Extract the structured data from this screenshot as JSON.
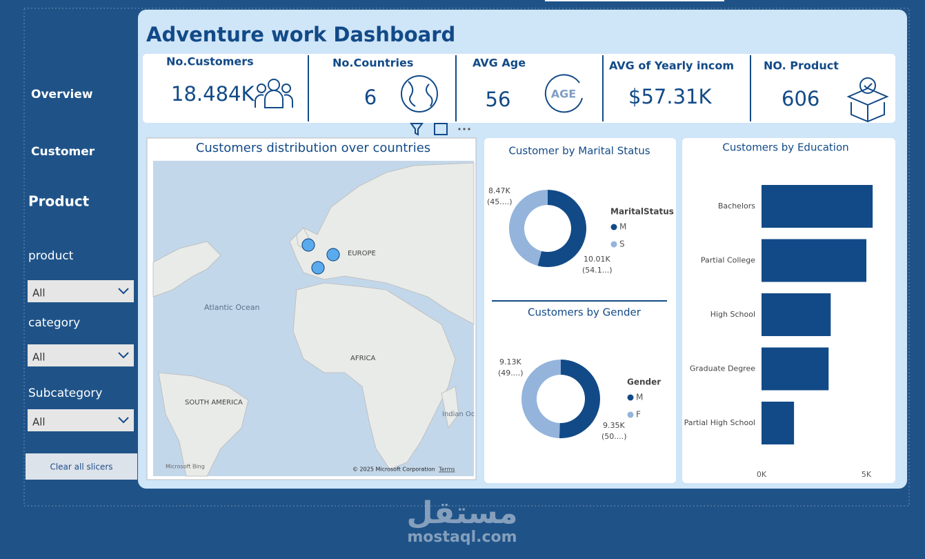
{
  "sidebar": {
    "nav": [
      "Overview",
      "Customer",
      "Product"
    ],
    "slicers": [
      {
        "label": "product",
        "value": "All"
      },
      {
        "label": "category",
        "value": "All"
      },
      {
        "label": "Subcategory",
        "value": "All"
      }
    ],
    "clear_button": "Clear all slicers"
  },
  "header": {
    "title": "Adventure work  Dashboard"
  },
  "kpis": [
    {
      "label": "No.Customers",
      "value": "18.484K"
    },
    {
      "label": "No.Countries",
      "value": "6"
    },
    {
      "label": "AVG Age",
      "value": "56"
    },
    {
      "label": "AVG of Yearly incom",
      "value": "$57.31K"
    },
    {
      "label": "NO. Product",
      "value": "606"
    }
  ],
  "age_icon": "AGE",
  "map": {
    "title": "Customers distribution over countries",
    "places": [
      "EUROPE",
      "Atlantic Ocean",
      "AFRICA",
      "SOUTH AMERICA",
      "Indian Oc"
    ],
    "brand": "Microsoft Bing",
    "credit": "© 2025 Microsoft Corporation",
    "terms": "Terms"
  },
  "marital": {
    "type": "pie",
    "title": "Customer by Marital Status",
    "legend_title": "MaritalStatus",
    "categories": [
      "M",
      "S"
    ],
    "values": [
      10010,
      8470
    ],
    "value_labels": [
      "10.01K",
      "8.47K"
    ],
    "percent_labels": [
      "(54.1...)",
      "(45....)"
    ],
    "colors": [
      "#124a87",
      "#94b4dc"
    ]
  },
  "gender": {
    "type": "pie",
    "title": "Customers by Gender",
    "legend_title": "Gender",
    "categories": [
      "M",
      "F"
    ],
    "values": [
      9350,
      9130
    ],
    "value_labels": [
      "9.35K",
      "9.13K"
    ],
    "percent_labels": [
      "(50....)",
      "(49....)"
    ],
    "colors": [
      "#124a87",
      "#94b4dc"
    ]
  },
  "education": {
    "type": "bar",
    "title": "Customers by Education",
    "categories": [
      "Bachelors",
      "Partial College",
      "High School",
      "Graduate Degree",
      "Partial High School"
    ],
    "values": [
      5300,
      5000,
      3300,
      3200,
      1550
    ],
    "color": "#124a87",
    "xlim": [
      0,
      5600
    ],
    "xticks": [
      {
        "value": 0,
        "label": "0K"
      },
      {
        "value": 5000,
        "label": "5K"
      }
    ]
  },
  "watermark": {
    "arabic": "مستقل",
    "latin": "mostaql.com"
  }
}
